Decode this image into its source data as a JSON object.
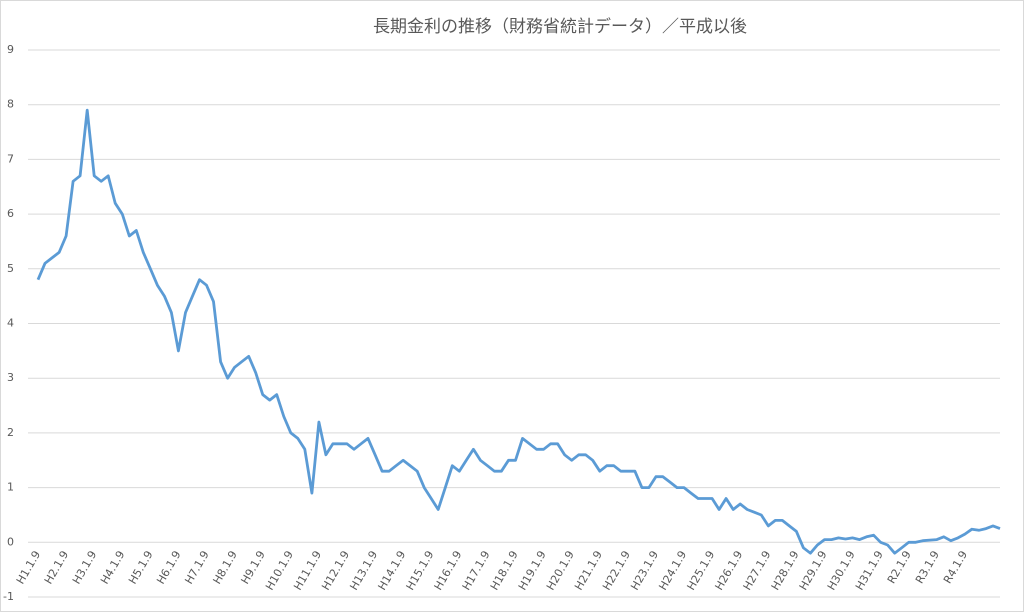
{
  "chart_data": {
    "type": "line",
    "title": "長期金利の推移（財務省統計データ）／平成以後",
    "categories": [
      "H1.1.9",
      null,
      null,
      null,
      "H2.1.9",
      null,
      null,
      null,
      "H3.1.9",
      null,
      null,
      null,
      "H4.1.9",
      null,
      null,
      null,
      "H5.1.9",
      null,
      null,
      null,
      "H6.1.9",
      null,
      null,
      null,
      "H7.1.9",
      null,
      null,
      null,
      "H8.1.9",
      null,
      null,
      null,
      "H9.1.9",
      null,
      null,
      null,
      "H10.1.9",
      null,
      null,
      null,
      "H11.1.9",
      null,
      null,
      null,
      "H12.1.9",
      null,
      null,
      null,
      "H13.1.9",
      null,
      null,
      null,
      "H14.1.9",
      null,
      null,
      null,
      "H15.1.9",
      null,
      null,
      null,
      "H16.1.9",
      null,
      null,
      null,
      "H17.1.9",
      null,
      null,
      null,
      "H18.1.9",
      null,
      null,
      null,
      "H19.1.9",
      null,
      null,
      null,
      "H20.1.9",
      null,
      null,
      null,
      "H21.1.9",
      null,
      null,
      null,
      "H22.1.9",
      null,
      null,
      null,
      "H23.1.9",
      null,
      null,
      null,
      "H24.1.9",
      null,
      null,
      null,
      "H25.1.9",
      null,
      null,
      null,
      "H26.1.9",
      null,
      null,
      null,
      "H27.1.9",
      null,
      null,
      null,
      "H28.1.9",
      null,
      null,
      null,
      "H29.1.9",
      null,
      null,
      null,
      "H30.1.9",
      null,
      null,
      null,
      "H31.1.9",
      null,
      null,
      null,
      "R2.1.9",
      null,
      null,
      null,
      "R3.1.9",
      null,
      null,
      null,
      "R4.1.9",
      null,
      null,
      null,
      null,
      null
    ],
    "values": [
      4.8,
      5.1,
      5.2,
      5.3,
      5.6,
      6.6,
      6.7,
      7.9,
      6.7,
      6.6,
      6.7,
      6.2,
      6.0,
      5.6,
      5.7,
      5.3,
      5.0,
      4.7,
      4.5,
      4.2,
      3.5,
      4.2,
      4.5,
      4.8,
      4.7,
      4.4,
      3.3,
      3.0,
      3.2,
      3.3,
      3.4,
      3.1,
      2.7,
      2.6,
      2.7,
      2.3,
      2.0,
      1.9,
      1.7,
      0.9,
      2.2,
      1.6,
      1.8,
      1.8,
      1.8,
      1.7,
      1.8,
      1.9,
      1.6,
      1.3,
      1.3,
      1.4,
      1.5,
      1.4,
      1.3,
      1.0,
      0.8,
      0.6,
      1.0,
      1.4,
      1.3,
      1.5,
      1.7,
      1.5,
      1.4,
      1.3,
      1.3,
      1.5,
      1.5,
      1.9,
      1.8,
      1.7,
      1.7,
      1.8,
      1.8,
      1.6,
      1.5,
      1.6,
      1.6,
      1.5,
      1.3,
      1.4,
      1.4,
      1.3,
      1.3,
      1.3,
      1.0,
      1.0,
      1.2,
      1.2,
      1.1,
      1.0,
      1.0,
      0.9,
      0.8,
      0.8,
      0.8,
      0.6,
      0.8,
      0.6,
      0.7,
      0.6,
      0.55,
      0.5,
      0.3,
      0.4,
      0.4,
      0.3,
      0.2,
      -0.1,
      -0.2,
      -0.05,
      0.05,
      0.05,
      0.08,
      0.06,
      0.08,
      0.05,
      0.1,
      0.13,
      0.0,
      -0.05,
      -0.2,
      -0.1,
      0.0,
      0.0,
      0.03,
      0.04,
      0.05,
      0.1,
      0.03,
      0.08,
      0.15,
      0.24,
      0.22,
      0.25,
      0.3,
      0.25
    ],
    "color": "#5b9bd5",
    "ylim": [
      -1,
      9
    ],
    "yticks": [
      -1,
      0,
      1,
      2,
      3,
      4,
      5,
      6,
      7,
      8,
      9
    ],
    "grid": true
  }
}
